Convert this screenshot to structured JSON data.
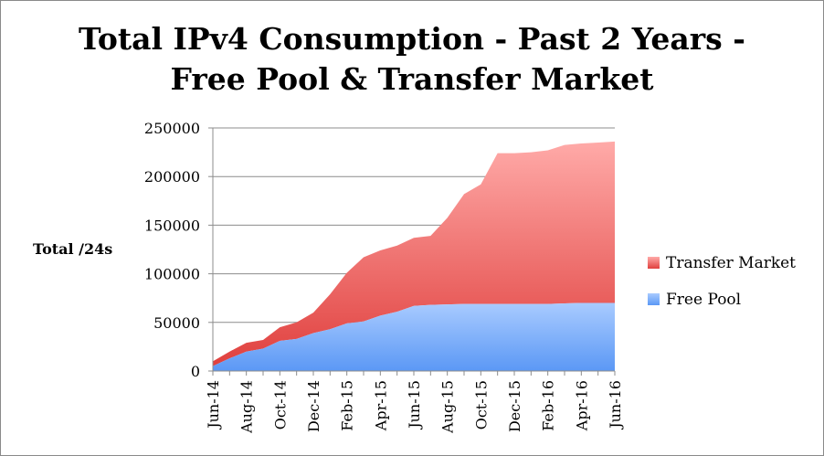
{
  "chart_data": {
    "type": "area",
    "stacked": true,
    "title_lines": [
      "Total IPv4 Consumption - Past 2 Years -",
      "Free Pool & Transfer Market"
    ],
    "xlabel": "",
    "ylabel": "Total /24s",
    "ylim": [
      0,
      250000
    ],
    "yticks": [
      "0",
      "50000",
      "100000",
      "150000",
      "200000",
      "250000"
    ],
    "grid": true,
    "legend_position": "right",
    "x": [
      "Jun-14",
      "Jul-14",
      "Aug-14",
      "Sep-14",
      "Oct-14",
      "Nov-14",
      "Dec-14",
      "Jan-15",
      "Feb-15",
      "Mar-15",
      "Apr-15",
      "May-15",
      "Jun-15",
      "Jul-15",
      "Aug-15",
      "Sep-15",
      "Oct-15",
      "Nov-15",
      "Dec-15",
      "Jan-16",
      "Feb-16",
      "Mar-16",
      "Apr-16",
      "May-16",
      "Jun-16"
    ],
    "xtick_labels": [
      "Jun-14",
      "Aug-14",
      "Oct-14",
      "Dec-14",
      "Feb-15",
      "Apr-15",
      "Jun-15",
      "Aug-15",
      "Oct-15",
      "Dec-15",
      "Feb-16",
      "Apr-16",
      "Jun-16"
    ],
    "series": [
      {
        "name": "Free Pool",
        "color": "#7fb2ff",
        "values": [
          5000,
          13000,
          20000,
          23000,
          31000,
          33000,
          39000,
          43000,
          49000,
          51000,
          57000,
          61000,
          67000,
          68000,
          68500,
          69000,
          69000,
          69000,
          69000,
          69000,
          69000,
          69500,
          70000,
          70000,
          70000
        ]
      },
      {
        "name": "Transfer Market",
        "color": "#f26b6b",
        "values": [
          5000,
          7000,
          9000,
          9000,
          14000,
          17000,
          21000,
          36000,
          52000,
          66000,
          67000,
          68000,
          70000,
          71000,
          89000,
          113000,
          123000,
          155000,
          155000,
          156000,
          158000,
          163000,
          164000,
          165000,
          166000
        ]
      }
    ]
  }
}
